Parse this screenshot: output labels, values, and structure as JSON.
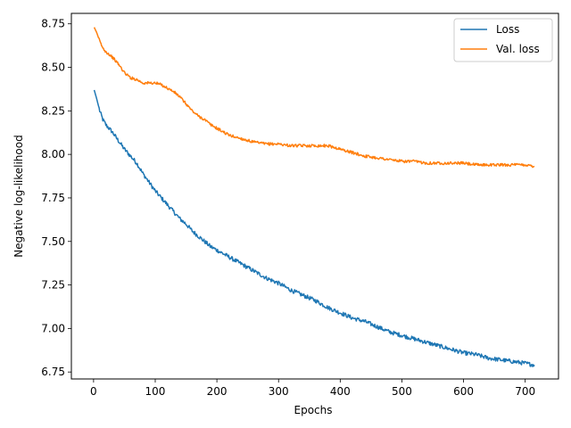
{
  "chart_data": {
    "type": "line",
    "title": "",
    "xlabel": "Epochs",
    "ylabel": "Negative log-likelihood",
    "xlim": [
      -36,
      754
    ],
    "ylim": [
      6.71,
      8.81
    ],
    "xticks": [
      0,
      100,
      200,
      300,
      400,
      500,
      600,
      700
    ],
    "xtick_labels": [
      "0",
      "100",
      "200",
      "300",
      "400",
      "500",
      "600",
      "700"
    ],
    "yticks": [
      6.75,
      7.0,
      7.25,
      7.5,
      7.75,
      8.0,
      8.25,
      8.5,
      8.75
    ],
    "ytick_labels": [
      "6.75",
      "7.00",
      "7.25",
      "7.50",
      "7.75",
      "8.00",
      "8.25",
      "8.50",
      "8.75"
    ],
    "grid": false,
    "legend_position": "top-right",
    "series": [
      {
        "name": "Loss",
        "color": "#1f77b4",
        "x": [
          1,
          5,
          10,
          15,
          20,
          30,
          40,
          50,
          60,
          70,
          80,
          90,
          100,
          110,
          120,
          130,
          140,
          150,
          160,
          170,
          180,
          190,
          200,
          220,
          240,
          260,
          280,
          300,
          320,
          340,
          360,
          380,
          400,
          420,
          440,
          460,
          480,
          500,
          520,
          540,
          560,
          580,
          600,
          620,
          640,
          660,
          680,
          700,
          715
        ],
        "y": [
          8.37,
          8.32,
          8.25,
          8.2,
          8.17,
          8.13,
          8.08,
          8.03,
          7.99,
          7.95,
          7.89,
          7.84,
          7.79,
          7.75,
          7.71,
          7.67,
          7.63,
          7.6,
          7.56,
          7.53,
          7.5,
          7.47,
          7.45,
          7.41,
          7.37,
          7.33,
          7.29,
          7.26,
          7.22,
          7.19,
          7.16,
          7.12,
          7.09,
          7.06,
          7.04,
          7.01,
          6.98,
          6.96,
          6.94,
          6.92,
          6.9,
          6.88,
          6.86,
          6.85,
          6.83,
          6.82,
          6.81,
          6.8,
          6.79
        ]
      },
      {
        "name": "Val. loss",
        "color": "#ff7f0e",
        "x": [
          1,
          5,
          10,
          15,
          20,
          30,
          40,
          50,
          60,
          70,
          80,
          90,
          100,
          110,
          120,
          130,
          140,
          150,
          160,
          170,
          180,
          190,
          200,
          220,
          240,
          260,
          280,
          300,
          320,
          340,
          360,
          380,
          400,
          420,
          440,
          460,
          480,
          500,
          520,
          540,
          560,
          580,
          600,
          620,
          640,
          660,
          680,
          700,
          715
        ],
        "y": [
          8.73,
          8.7,
          8.65,
          8.61,
          8.59,
          8.56,
          8.52,
          8.47,
          8.44,
          8.43,
          8.41,
          8.41,
          8.41,
          8.4,
          8.38,
          8.36,
          8.33,
          8.29,
          8.25,
          8.22,
          8.2,
          8.17,
          8.15,
          8.11,
          8.09,
          8.07,
          8.06,
          8.06,
          8.05,
          8.05,
          8.05,
          8.05,
          8.03,
          8.01,
          7.99,
          7.98,
          7.97,
          7.96,
          7.96,
          7.95,
          7.95,
          7.95,
          7.95,
          7.94,
          7.94,
          7.94,
          7.94,
          7.94,
          7.93
        ]
      }
    ]
  }
}
